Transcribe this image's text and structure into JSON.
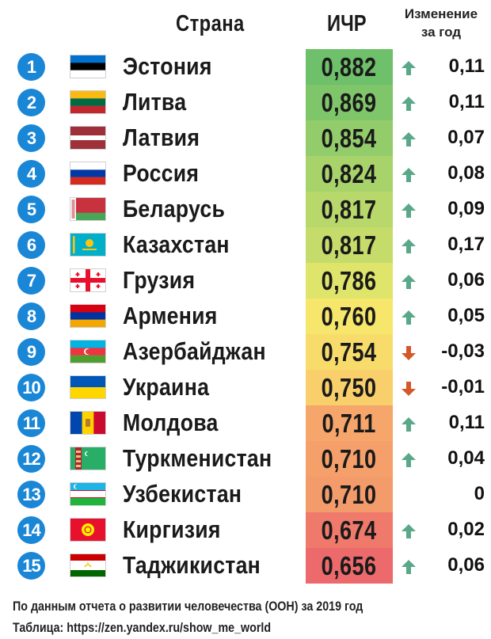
{
  "header": {
    "country": "Страна",
    "hdi": "ИЧР",
    "change_line1": "Изменение",
    "change_line2": "за год"
  },
  "colors": {
    "rank_badge": "#1a86d6",
    "arrow_up": "#5aa88a",
    "arrow_down": "#d4582a",
    "hdi_scale_high": "#6abf69",
    "hdi_scale_mid": "#f7e56a",
    "hdi_scale_low": "#ee6a6a"
  },
  "chart_data": {
    "type": "table",
    "columns": [
      "",
      "Страна",
      "ИЧР",
      "Изменение за год"
    ],
    "rows": [
      {
        "rank": "1",
        "flag": "estonia-flag",
        "country": "Эстония",
        "hdi": "0,882",
        "change": "0,11",
        "direction": "up",
        "color": "#6ec06a"
      },
      {
        "rank": "2",
        "flag": "lithuania-flag",
        "country": "Литва",
        "hdi": "0,869",
        "change": "0,11",
        "direction": "up",
        "color": "#7fc66a"
      },
      {
        "rank": "3",
        "flag": "latvia-flag",
        "country": "Латвия",
        "hdi": "0,854",
        "change": "0,07",
        "direction": "up",
        "color": "#92cc6b"
      },
      {
        "rank": "4",
        "flag": "russia-flag",
        "country": "Россия",
        "hdi": "0,824",
        "change": "0,08",
        "direction": "up",
        "color": "#a8d36b"
      },
      {
        "rank": "5",
        "flag": "belarus-flag",
        "country": "Беларусь",
        "hdi": "0,817",
        "change": "0,09",
        "direction": "up",
        "color": "#b8d86b"
      },
      {
        "rank": "6",
        "flag": "kazakhstan-flag",
        "country": "Казахстан",
        "hdi": "0,817",
        "change": "0,17",
        "direction": "up",
        "color": "#c5dc6b"
      },
      {
        "rank": "7",
        "flag": "georgia-flag",
        "country": "Грузия",
        "hdi": "0,786",
        "change": "0,06",
        "direction": "up",
        "color": "#dfe46b"
      },
      {
        "rank": "8",
        "flag": "armenia-flag",
        "country": "Армения",
        "hdi": "0,760",
        "change": "0,05",
        "direction": "up",
        "color": "#f6e66b"
      },
      {
        "rank": "9",
        "flag": "azerbaijan-flag",
        "country": "Азербайджан",
        "hdi": "0,754",
        "change": "-0,03",
        "direction": "down",
        "color": "#f8dc6b"
      },
      {
        "rank": "10",
        "flag": "ukraine-flag",
        "country": "Украина",
        "hdi": "0,750",
        "change": "-0,01",
        "direction": "down",
        "color": "#f9cf6b"
      },
      {
        "rank": "11",
        "flag": "moldova-flag",
        "country": "Молдова",
        "hdi": "0,711",
        "change": "0,11",
        "direction": "up",
        "color": "#f6a56b"
      },
      {
        "rank": "12",
        "flag": "turkmenistan-flag",
        "country": "Туркменистан",
        "hdi": "0,710",
        "change": "0,04",
        "direction": "up",
        "color": "#f5a06b"
      },
      {
        "rank": "13",
        "flag": "uzbekistan-flag",
        "country": "Узбекистан",
        "hdi": "0,710",
        "change": "0",
        "direction": "none",
        "color": "#f49b6b"
      },
      {
        "rank": "14",
        "flag": "kyrgyzstan-flag",
        "country": "Киргизия",
        "hdi": "0,674",
        "change": "0,02",
        "direction": "up",
        "color": "#ef7a6b"
      },
      {
        "rank": "15",
        "flag": "tajikistan-flag",
        "country": "Таджикистан",
        "hdi": "0,656",
        "change": "0,06",
        "direction": "up",
        "color": "#ec6a6b"
      }
    ]
  },
  "footer": {
    "source": "По данным отчета о развитии человечества (ООН) за 2019 год",
    "table_credit": "Таблица: https://zen.yandex.ru/show_me_world"
  }
}
